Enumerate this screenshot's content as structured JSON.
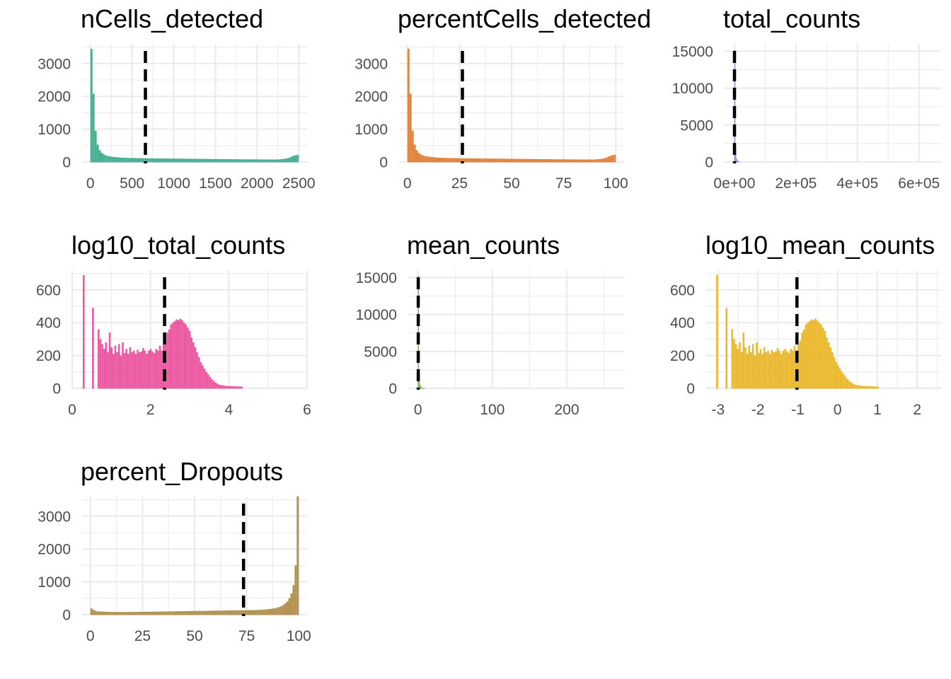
{
  "chart_data": [
    {
      "type": "bar",
      "title": "nCells_detected",
      "color": "#3aa88c",
      "xlim": [
        -100,
        2600
      ],
      "ylim": [
        0,
        3600
      ],
      "xticks": [
        0,
        500,
        1000,
        1500,
        2000,
        2500
      ],
      "xtick_labels": [
        "0",
        "500",
        "1000",
        "1500",
        "2000",
        "2500"
      ],
      "yticks": [
        0,
        1000,
        2000,
        3000
      ],
      "ytick_labels": [
        "0",
        "1000",
        "2000",
        "3000"
      ],
      "vline": 660,
      "bin_start": 0,
      "bin_width": 25,
      "counts": [
        3450,
        2080,
        950,
        530,
        360,
        280,
        230,
        200,
        180,
        170,
        160,
        150,
        148,
        140,
        135,
        130,
        128,
        125,
        124,
        122,
        120,
        118,
        117,
        116,
        115,
        114,
        113,
        112,
        111,
        110,
        110,
        109,
        108,
        108,
        107,
        106,
        106,
        105,
        104,
        104,
        103,
        102,
        102,
        101,
        100,
        100,
        99,
        98,
        98,
        97,
        96,
        96,
        95,
        94,
        94,
        93,
        92,
        92,
        91,
        90,
        90,
        89,
        88,
        88,
        87,
        86,
        86,
        85,
        84,
        84,
        83,
        82,
        82,
        81,
        80,
        80,
        80,
        79,
        79,
        78,
        78,
        78,
        77,
        77,
        76,
        76,
        76,
        75,
        75,
        74,
        80,
        85,
        90,
        100,
        110,
        130,
        160,
        190,
        205,
        220
      ]
    },
    {
      "type": "bar",
      "title": "percentCells_detected",
      "color": "#e07a2c",
      "xlim": [
        -4,
        104
      ],
      "ylim": [
        0,
        3600
      ],
      "xticks": [
        0,
        25,
        50,
        75,
        100
      ],
      "xtick_labels": [
        "0",
        "25",
        "50",
        "75",
        "100"
      ],
      "yticks": [
        0,
        1000,
        2000,
        3000
      ],
      "ytick_labels": [
        "0",
        "1000",
        "2000",
        "3000"
      ],
      "vline": 26.4,
      "bin_start": 0,
      "bin_width": 1,
      "counts": [
        3450,
        2080,
        950,
        530,
        360,
        280,
        230,
        200,
        180,
        170,
        160,
        150,
        148,
        140,
        135,
        130,
        128,
        125,
        124,
        122,
        120,
        118,
        117,
        116,
        115,
        114,
        113,
        112,
        111,
        110,
        110,
        109,
        108,
        108,
        107,
        106,
        106,
        105,
        104,
        104,
        103,
        102,
        102,
        101,
        100,
        100,
        99,
        98,
        98,
        97,
        96,
        96,
        95,
        94,
        94,
        93,
        92,
        92,
        91,
        90,
        90,
        89,
        88,
        88,
        87,
        86,
        86,
        85,
        84,
        84,
        83,
        82,
        82,
        81,
        80,
        80,
        80,
        79,
        79,
        78,
        78,
        78,
        77,
        77,
        76,
        76,
        76,
        75,
        75,
        74,
        80,
        85,
        90,
        100,
        110,
        130,
        160,
        190,
        205,
        220
      ]
    },
    {
      "type": "bar",
      "title": "total_counts",
      "color": "#8a80c0",
      "xlim": [
        -32000,
        672000
      ],
      "ylim": [
        0,
        16000
      ],
      "xticks": [
        0,
        200000,
        400000,
        600000
      ],
      "xtick_labels": [
        "0e+00",
        "2e+05",
        "4e+05",
        "6e+05"
      ],
      "yticks": [
        0,
        5000,
        10000,
        15000
      ],
      "ytick_labels": [
        "0",
        "5000",
        "10000",
        "15000"
      ],
      "vline": 230,
      "bin_start": 0,
      "bin_width": 3000,
      "counts": [
        15200,
        2000,
        450,
        180,
        80,
        40
      ]
    },
    {
      "type": "bar",
      "title": "log10_total_counts",
      "color": "#e84d9a",
      "xlim": [
        0,
        6
      ],
      "ylim": [
        0,
        720
      ],
      "xticks": [
        0,
        2,
        4,
        6
      ],
      "xtick_labels": [
        "0",
        "2",
        "4",
        "6"
      ],
      "yticks": [
        0,
        200,
        400,
        600
      ],
      "ytick_labels": [
        "0",
        "200",
        "400",
        "600"
      ],
      "vline": 2.36,
      "bin_start": 0.27,
      "bin_width": 0.0475,
      "counts": [
        690,
        0,
        0,
        0,
        0,
        490,
        0,
        0,
        360,
        300,
        270,
        240,
        280,
        220,
        340,
        250,
        210,
        260,
        220,
        270,
        200,
        280,
        215,
        240,
        210,
        250,
        220,
        230,
        210,
        235,
        220,
        225,
        245,
        230,
        210,
        230,
        240,
        225,
        215,
        240,
        230,
        260,
        230,
        270,
        290,
        340,
        360,
        390,
        400,
        410,
        420,
        415,
        425,
        415,
        400,
        390,
        370,
        350,
        310,
        280,
        250,
        220,
        190,
        160,
        140,
        120,
        100,
        85,
        70,
        55,
        45,
        35,
        28,
        22,
        20,
        18,
        16,
        15,
        14,
        14,
        13,
        12,
        12,
        12,
        11,
        10
      ]
    },
    {
      "type": "bar",
      "title": "mean_counts",
      "color": "#7aa83a",
      "xlim": [
        -13,
        277
      ],
      "ylim": [
        0,
        16000
      ],
      "xticks": [
        0,
        100,
        200
      ],
      "xtick_labels": [
        "0",
        "100",
        "200"
      ],
      "yticks": [
        0,
        5000,
        10000,
        15000
      ],
      "ytick_labels": [
        "0",
        "5000",
        "10000",
        "15000"
      ],
      "vline": 0.4,
      "bin_start": 0,
      "bin_width": 1.3,
      "counts": [
        15200,
        2000,
        450,
        180,
        80,
        40,
        20,
        10
      ]
    },
    {
      "type": "bar",
      "title": "log10_mean_counts",
      "color": "#e8b422",
      "xlim": [
        -3.3,
        2.6
      ],
      "ylim": [
        0,
        720
      ],
      "xticks": [
        -3,
        -2,
        -1,
        0,
        1,
        2
      ],
      "xtick_labels": [
        "-3",
        "-2",
        "-1",
        "0",
        "1",
        "2"
      ],
      "yticks": [
        0,
        200,
        400,
        600
      ],
      "ytick_labels": [
        "0",
        "200",
        "400",
        "600"
      ],
      "vline": -1.02,
      "bin_start": -3.05,
      "bin_width": 0.0475,
      "counts": [
        690,
        0,
        0,
        0,
        0,
        490,
        0,
        0,
        360,
        300,
        270,
        240,
        280,
        220,
        340,
        250,
        210,
        260,
        220,
        270,
        200,
        280,
        215,
        240,
        210,
        250,
        220,
        230,
        210,
        235,
        220,
        225,
        245,
        230,
        210,
        230,
        240,
        225,
        215,
        240,
        230,
        260,
        230,
        270,
        290,
        340,
        360,
        390,
        400,
        410,
        420,
        415,
        425,
        415,
        400,
        390,
        370,
        350,
        310,
        280,
        250,
        220,
        190,
        160,
        140,
        120,
        100,
        85,
        70,
        55,
        45,
        35,
        28,
        22,
        20,
        18,
        16,
        15,
        14,
        14,
        13,
        12,
        12,
        12,
        11,
        10
      ]
    },
    {
      "type": "bar",
      "title": "percent_Dropouts",
      "color": "#ad8a43",
      "xlim": [
        -4,
        104
      ],
      "ylim": [
        0,
        3600
      ],
      "xticks": [
        0,
        25,
        50,
        75,
        100
      ],
      "xtick_labels": [
        "0",
        "25",
        "50",
        "75",
        "100"
      ],
      "yticks": [
        0,
        1000,
        2000,
        3000
      ],
      "ytick_labels": [
        "0",
        "1000",
        "2000",
        "3000"
      ],
      "vline": 73.5,
      "bin_start": 0,
      "bin_width": 1,
      "counts": [
        190,
        150,
        115,
        100,
        95,
        92,
        90,
        88,
        86,
        84,
        82,
        81,
        80,
        80,
        80,
        80,
        80,
        81,
        81,
        82,
        82,
        83,
        84,
        85,
        86,
        87,
        88,
        89,
        90,
        91,
        92,
        93,
        94,
        95,
        96,
        97,
        98,
        99,
        100,
        101,
        102,
        103,
        104,
        105,
        106,
        107,
        108,
        109,
        110,
        111,
        112,
        113,
        114,
        115,
        116,
        117,
        118,
        119,
        120,
        121,
        122,
        123,
        124,
        125,
        126,
        127,
        128,
        129,
        130,
        131,
        132,
        133,
        134,
        135,
        136,
        137,
        138,
        139,
        140,
        142,
        144,
        147,
        150,
        155,
        160,
        168,
        176,
        185,
        195,
        210,
        230,
        255,
        290,
        340,
        400,
        500,
        650,
        900,
        1500,
        3600
      ]
    }
  ]
}
